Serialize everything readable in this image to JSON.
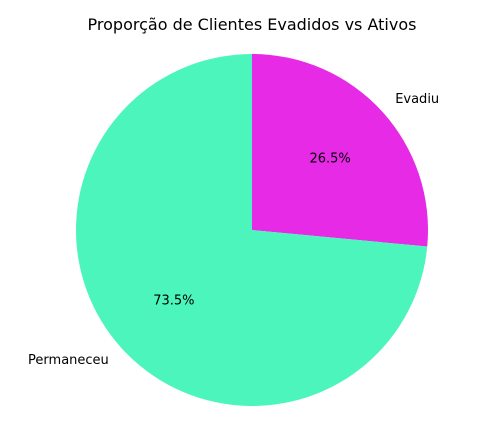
{
  "chart_data": {
    "type": "pie",
    "title": "Proporção de Clientes Evadidos vs Ativos",
    "slices": [
      {
        "label": "Evadiu",
        "value": 26.5,
        "pct_label": "26.5%",
        "color": "#e62ae6"
      },
      {
        "label": "Permaneceu",
        "value": 73.5,
        "pct_label": "73.5%",
        "color": "#4cf5bb"
      }
    ],
    "start_angle_deg": 90,
    "direction": "clockwise",
    "legend": "none"
  }
}
